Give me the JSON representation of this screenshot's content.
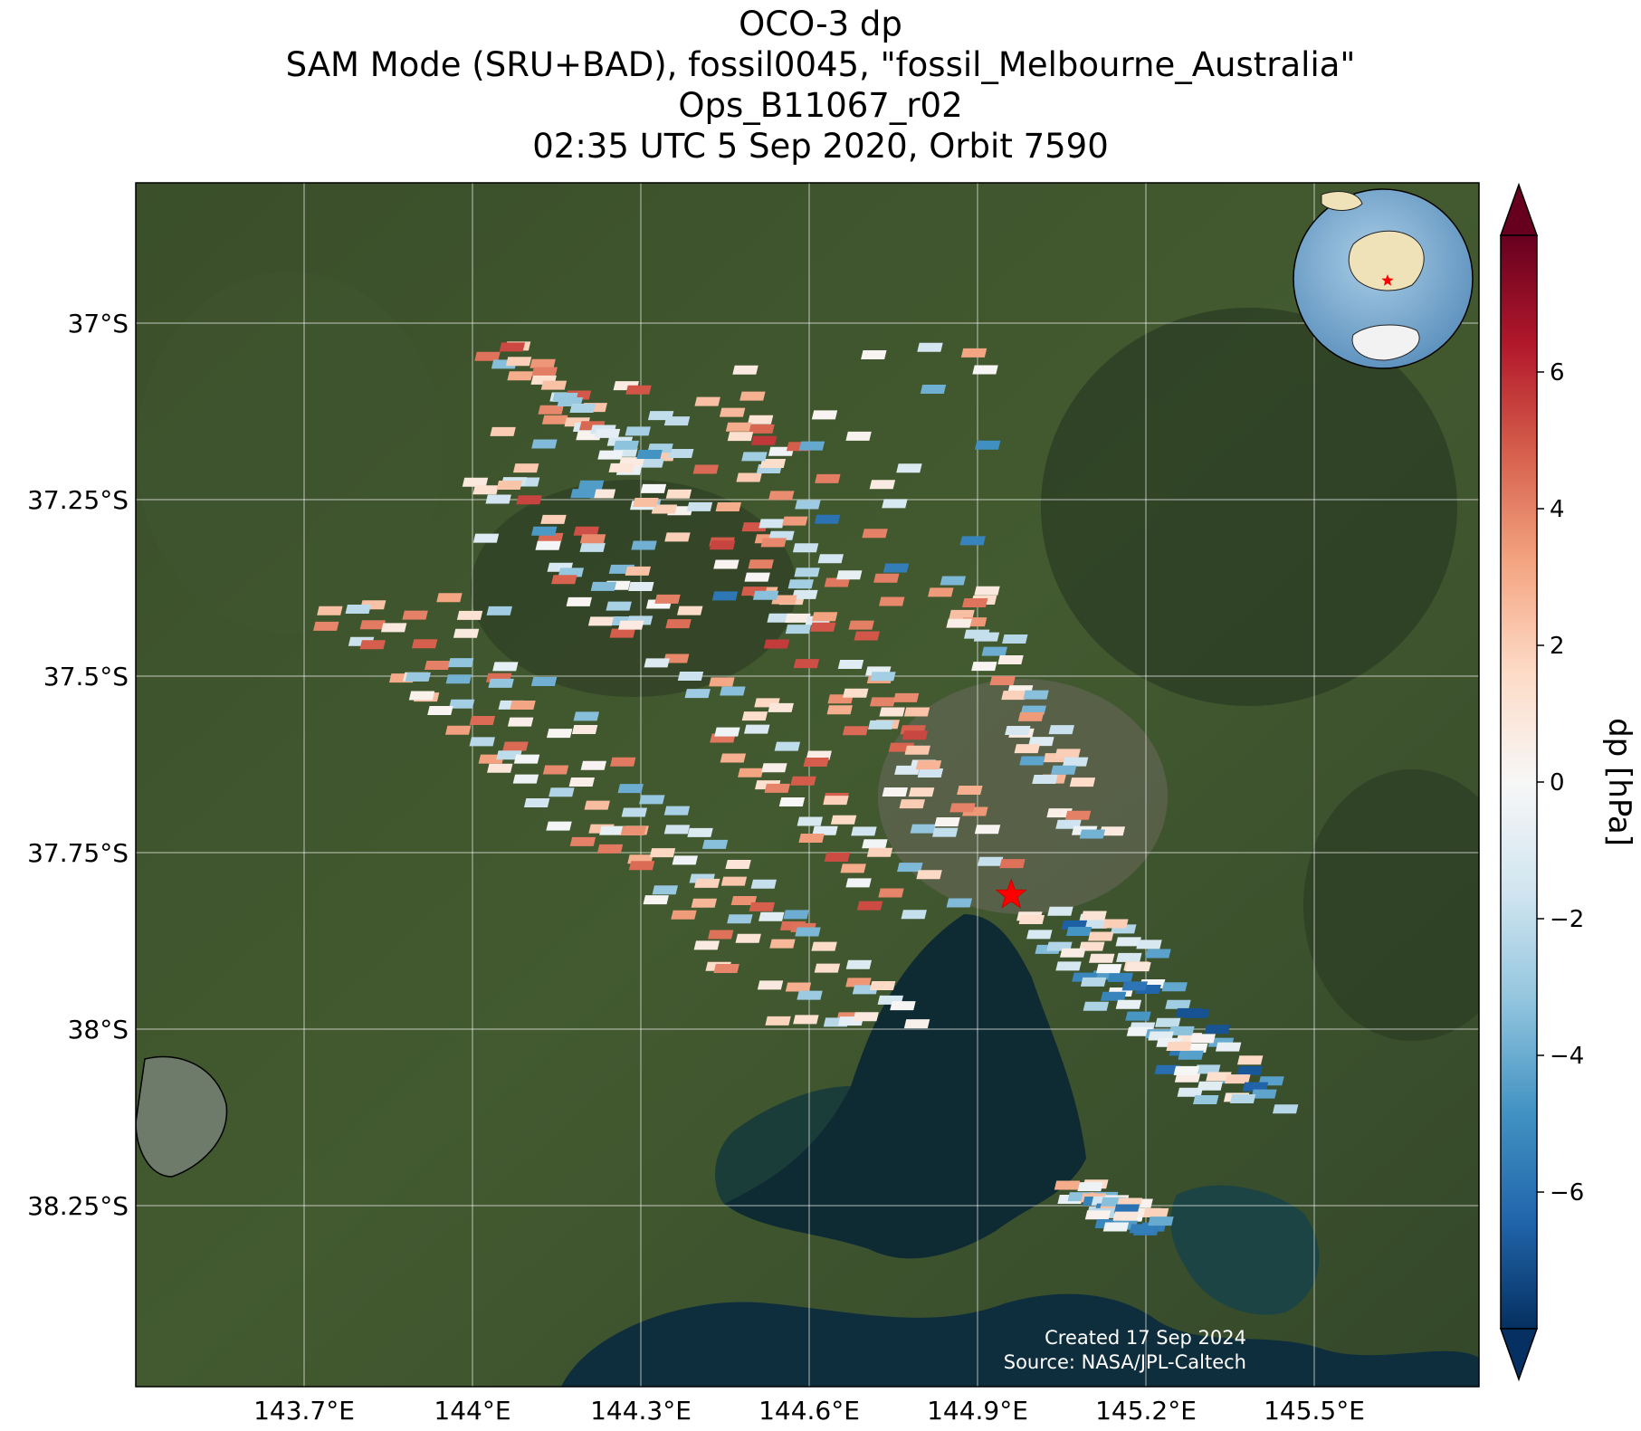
{
  "title_lines": [
    "OCO-3 dp",
    "SAM Mode (SRU+BAD), fossil0045, \"fossil_Melbourne_Australia\"",
    "Ops_B11067_r02",
    "02:35 UTC 5 Sep 2020, Orbit 7590"
  ],
  "credits": {
    "created": "Created 17 Sep 2024",
    "source": "Source: NASA/JPL-Caltech"
  },
  "colorbar": {
    "label": "dp [hPa]",
    "range": [
      -8,
      8
    ],
    "ticks": [
      -6,
      -4,
      -2,
      0,
      2,
      4,
      6
    ],
    "tick_labels": [
      "−6",
      "−4",
      "−2",
      "0",
      "2",
      "4",
      "6"
    ],
    "colormap": "RdBu_r",
    "extend": "both"
  },
  "chart_data": {
    "type": "map",
    "variable": "dp",
    "units": "hPa",
    "lon_range": [
      143.5,
      145.8
    ],
    "lat_range": [
      -38.5,
      -36.8
    ],
    "lon_ticks": [
      143.7,
      144.0,
      144.3,
      144.6,
      144.9,
      145.2,
      145.5
    ],
    "lon_tick_labels": [
      "143.7°E",
      "144°E",
      "144.3°E",
      "144.6°E",
      "144.9°E",
      "145.2°E",
      "145.5°E"
    ],
    "lat_ticks": [
      -37.0,
      -37.25,
      -37.5,
      -37.75,
      -38.0,
      -38.25
    ],
    "lat_tick_labels": [
      "37°S",
      "37.25°S",
      "37.5°S",
      "37.75°S",
      "38°S",
      "38.25°S"
    ],
    "target_marker": {
      "lon": 144.96,
      "lat": -37.81,
      "symbol": "star",
      "color": "#ff0000"
    },
    "inset_globe": {
      "center_region": "Australia",
      "marker": "star",
      "marker_color": "#ff0000"
    },
    "soundings_note": "SAM footprints colored by dp over satellite imagery, values range about -8 to 8 hPa"
  }
}
